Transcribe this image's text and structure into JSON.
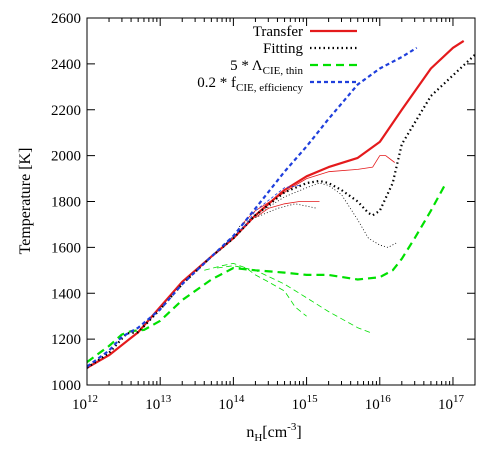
{
  "chart_data": {
    "type": "line",
    "title": "",
    "xlabel": "n",
    "xlabel_sub": "H",
    "xlabel_unit": "[cm",
    "xlabel_unit_sup": "-3",
    "xlabel_unit_close": "]",
    "ylabel": "Temperature [K]",
    "xscale": "log",
    "xlim": [
      1000000000000.0,
      2e+17
    ],
    "ylim": [
      1000,
      2600
    ],
    "x_ticks": [
      {
        "value": 1000000000000.0,
        "base": "10",
        "exp": "12"
      },
      {
        "value": 10000000000000.0,
        "base": "10",
        "exp": "13"
      },
      {
        "value": 100000000000000.0,
        "base": "10",
        "exp": "14"
      },
      {
        "value": 1000000000000000.0,
        "base": "10",
        "exp": "15"
      },
      {
        "value": 1e+16,
        "base": "10",
        "exp": "16"
      },
      {
        "value": 1e+17,
        "base": "10",
        "exp": "17"
      }
    ],
    "y_ticks": [
      1000,
      1200,
      1400,
      1600,
      1800,
      2000,
      2200,
      2400,
      2600
    ],
    "grid": false,
    "legend_position": "top-right",
    "legend": [
      {
        "label": "Transfer",
        "color": "#e41a1c",
        "dash": "solid"
      },
      {
        "label": "Fitting",
        "color": "#000000",
        "dash": "dotted"
      },
      {
        "label_main": "5 * Λ",
        "label_sub": "CIE, thin",
        "color": "#00e000",
        "dash": "dashed"
      },
      {
        "label_main": "0.2 * f",
        "label_sub": "CIE, efficiency",
        "color": "#1f3fdc",
        "dash": "shortdash"
      }
    ],
    "series": [
      {
        "style": "transfer",
        "width": "thick",
        "points": [
          [
            1000000000000.0,
            1075
          ],
          [
            2000000000000.0,
            1130
          ],
          [
            5000000000000.0,
            1230
          ],
          [
            10000000000000.0,
            1340
          ],
          [
            20000000000000.0,
            1450
          ],
          [
            50000000000000.0,
            1560
          ],
          [
            100000000000000.0,
            1640
          ],
          [
            200000000000000.0,
            1740
          ],
          [
            500000000000000.0,
            1850
          ],
          [
            1000000000000000.0,
            1910
          ],
          [
            2000000000000000.0,
            1950
          ],
          [
            5000000000000000.0,
            1990
          ],
          [
            1e+16,
            2060
          ],
          [
            2e+16,
            2200
          ],
          [
            5e+16,
            2380
          ],
          [
            1e+17,
            2470
          ],
          [
            1.4e+17,
            2500
          ]
        ]
      },
      {
        "style": "transfer",
        "width": "thin",
        "points": [
          [
            130000000000000.0,
            1700
          ],
          [
            200000000000000.0,
            1760
          ],
          [
            400000000000000.0,
            1820
          ],
          [
            700000000000000.0,
            1870
          ],
          [
            1000000000000000.0,
            1900
          ],
          [
            2000000000000000.0,
            1930
          ],
          [
            5000000000000000.0,
            1940
          ],
          [
            8000000000000000.0,
            1950
          ],
          [
            1e+16,
            2000
          ],
          [
            1.2e+16,
            2000
          ],
          [
            1.6e+16,
            1970
          ]
        ]
      },
      {
        "style": "transfer",
        "width": "thin",
        "points": [
          [
            200000000000000.0,
            1730
          ],
          [
            300000000000000.0,
            1770
          ],
          [
            500000000000000.0,
            1790
          ],
          [
            800000000000000.0,
            1800
          ],
          [
            1500000000000000.0,
            1800
          ]
        ]
      },
      {
        "style": "fitting",
        "width": "thick",
        "points": [
          [
            1000000000000.0,
            1075
          ],
          [
            2000000000000.0,
            1140
          ],
          [
            3500000000000.0,
            1225
          ],
          [
            5000000000000.0,
            1230
          ],
          [
            10000000000000.0,
            1330
          ],
          [
            20000000000000.0,
            1440
          ],
          [
            50000000000000.0,
            1560
          ],
          [
            100000000000000.0,
            1640
          ],
          [
            200000000000000.0,
            1740
          ],
          [
            500000000000000.0,
            1840
          ],
          [
            1000000000000000.0,
            1880
          ],
          [
            1500000000000000.0,
            1890
          ],
          [
            2000000000000000.0,
            1880
          ],
          [
            3000000000000000.0,
            1850
          ],
          [
            5000000000000000.0,
            1800
          ],
          [
            7000000000000000.0,
            1750
          ],
          [
            8000000000000000.0,
            1740
          ],
          [
            1e+16,
            1760
          ],
          [
            1.5e+16,
            1880
          ],
          [
            2e+16,
            2050
          ],
          [
            5e+16,
            2260
          ],
          [
            1e+17,
            2350
          ],
          [
            2e+17,
            2440
          ]
        ]
      },
      {
        "style": "fitting",
        "width": "thin",
        "points": [
          [
            120000000000000.0,
            1690
          ],
          [
            200000000000000.0,
            1740
          ],
          [
            500000000000000.0,
            1820
          ],
          [
            1000000000000000.0,
            1860
          ],
          [
            1500000000000000.0,
            1880
          ],
          [
            2000000000000000.0,
            1870
          ],
          [
            3000000000000000.0,
            1830
          ],
          [
            5000000000000000.0,
            1720
          ],
          [
            7000000000000000.0,
            1640
          ],
          [
            1e+16,
            1610
          ],
          [
            1.3e+16,
            1600
          ],
          [
            1.7e+16,
            1620
          ]
        ]
      },
      {
        "style": "fitting",
        "width": "thin",
        "points": [
          [
            200000000000000.0,
            1730
          ],
          [
            400000000000000.0,
            1770
          ],
          [
            700000000000000.0,
            1790
          ],
          [
            1000000000000000.0,
            1780
          ],
          [
            1400000000000000.0,
            1770
          ]
        ]
      },
      {
        "style": "cie_thin",
        "width": "thick",
        "points": [
          [
            1000000000000.0,
            1100
          ],
          [
            2000000000000.0,
            1170
          ],
          [
            3000000000000.0,
            1220
          ],
          [
            4000000000000.0,
            1235
          ],
          [
            6000000000000.0,
            1240
          ],
          [
            10000000000000.0,
            1280
          ],
          [
            20000000000000.0,
            1370
          ],
          [
            50000000000000.0,
            1460
          ],
          [
            100000000000000.0,
            1510
          ],
          [
            200000000000000.0,
            1500
          ],
          [
            500000000000000.0,
            1490
          ],
          [
            1000000000000000.0,
            1480
          ],
          [
            2000000000000000.0,
            1480
          ],
          [
            5000000000000000.0,
            1460
          ],
          [
            1e+16,
            1470
          ],
          [
            1.5e+16,
            1500
          ],
          [
            2e+16,
            1550
          ],
          [
            3e+16,
            1640
          ],
          [
            5e+16,
            1760
          ],
          [
            8e+16,
            1880
          ]
        ]
      },
      {
        "style": "cie_thin",
        "width": "thin",
        "points": [
          [
            40000000000000.0,
            1500
          ],
          [
            70000000000000.0,
            1520
          ],
          [
            100000000000000.0,
            1530
          ],
          [
            150000000000000.0,
            1510
          ],
          [
            200000000000000.0,
            1480
          ],
          [
            300000000000000.0,
            1450
          ],
          [
            500000000000000.0,
            1410
          ],
          [
            700000000000000.0,
            1340
          ],
          [
            1000000000000000.0,
            1300
          ]
        ]
      },
      {
        "style": "cie_thin",
        "width": "thin",
        "points": [
          [
            60000000000000.0,
            1510
          ],
          [
            100000000000000.0,
            1520
          ],
          [
            200000000000000.0,
            1500
          ],
          [
            500000000000000.0,
            1440
          ],
          [
            1000000000000000.0,
            1380
          ],
          [
            2000000000000000.0,
            1320
          ],
          [
            5000000000000000.0,
            1250
          ],
          [
            8000000000000000.0,
            1225
          ]
        ]
      },
      {
        "style": "cie_eff",
        "width": "thick",
        "points": [
          [
            1000000000000.0,
            1080
          ],
          [
            2000000000000.0,
            1150
          ],
          [
            3000000000000.0,
            1210
          ],
          [
            5000000000000.0,
            1250
          ],
          [
            10000000000000.0,
            1330
          ],
          [
            20000000000000.0,
            1440
          ],
          [
            50000000000000.0,
            1560
          ],
          [
            100000000000000.0,
            1650
          ],
          [
            200000000000000.0,
            1770
          ],
          [
            500000000000000.0,
            1930
          ],
          [
            1000000000000000.0,
            2040
          ],
          [
            2000000000000000.0,
            2160
          ],
          [
            5000000000000000.0,
            2310
          ],
          [
            1e+16,
            2380
          ],
          [
            2e+16,
            2430
          ],
          [
            3.2e+16,
            2470
          ]
        ]
      },
      {
        "style": "cie_eff",
        "width": "thin",
        "points": [
          [
            80000000000000.0,
            1620
          ],
          [
            100000000000000.0,
            1650
          ],
          [
            150000000000000.0,
            1700
          ],
          [
            200000000000000.0,
            1760
          ],
          [
            500000000000000.0,
            1860
          ],
          [
            800000000000000.0,
            1870
          ]
        ]
      }
    ]
  }
}
